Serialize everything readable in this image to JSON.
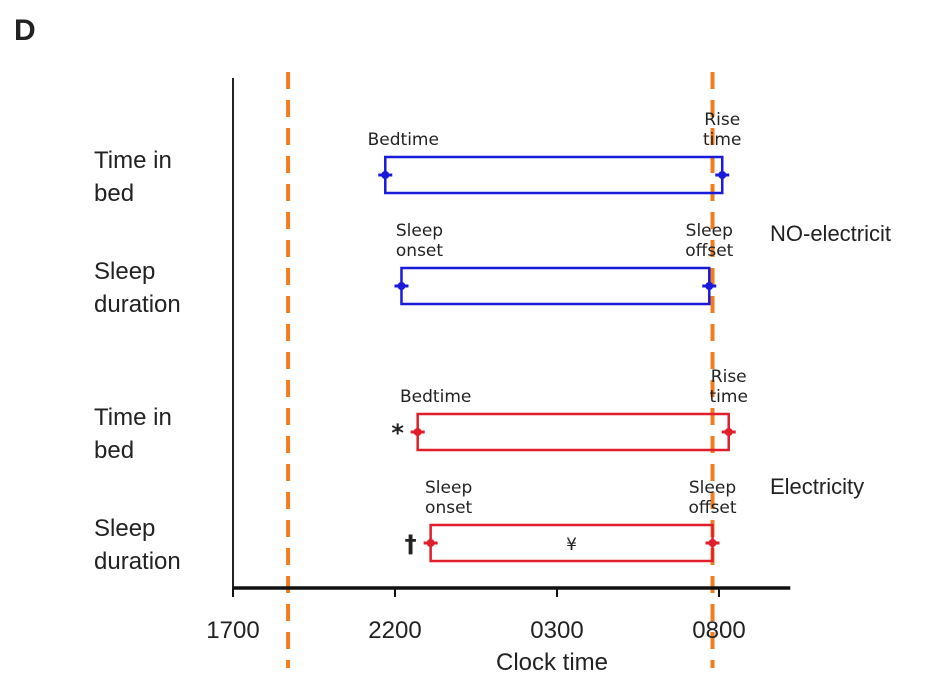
{
  "chart_data": {
    "type": "bar",
    "panel_label": "D",
    "xlabel": "Clock time",
    "x_ticks": [
      "1700",
      "2200",
      "0300",
      "0800"
    ],
    "xlim_hours_from_1700": [
      0,
      17.2
    ],
    "reference_lines_hours_from_1700": [
      1.7,
      14.8
    ],
    "reference_line_color": "#f07d1e",
    "row_labels": [
      [
        "Time in",
        "bed"
      ],
      [
        "Sleep",
        "duration"
      ],
      [
        "Time in",
        "bed"
      ],
      [
        "Sleep",
        "duration"
      ]
    ],
    "groups": [
      {
        "name": "NO-electricit",
        "color": "#1a1adb"
      },
      {
        "name": "Electricity",
        "color": "#e11e2b"
      }
    ],
    "rows": [
      {
        "group": 0,
        "start": 4.7,
        "end": 15.1,
        "start_label": [
          "Bedtime"
        ],
        "end_label": [
          "Rise",
          "time"
        ],
        "marker": ""
      },
      {
        "group": 0,
        "start": 5.2,
        "end": 14.7,
        "start_label": [
          "Sleep",
          "onset"
        ],
        "end_label": [
          "Sleep",
          "offset"
        ],
        "marker": ""
      },
      {
        "group": 1,
        "start": 5.7,
        "end": 15.3,
        "start_label": [
          "Bedtime"
        ],
        "end_label": [
          "Rise",
          "time"
        ],
        "marker": "*"
      },
      {
        "group": 1,
        "start": 6.1,
        "end": 14.8,
        "start_label": [
          "Sleep",
          "onset"
        ],
        "end_label": [
          "Sleep",
          "offset"
        ],
        "marker": "†",
        "inner_marker": "¥"
      }
    ]
  }
}
